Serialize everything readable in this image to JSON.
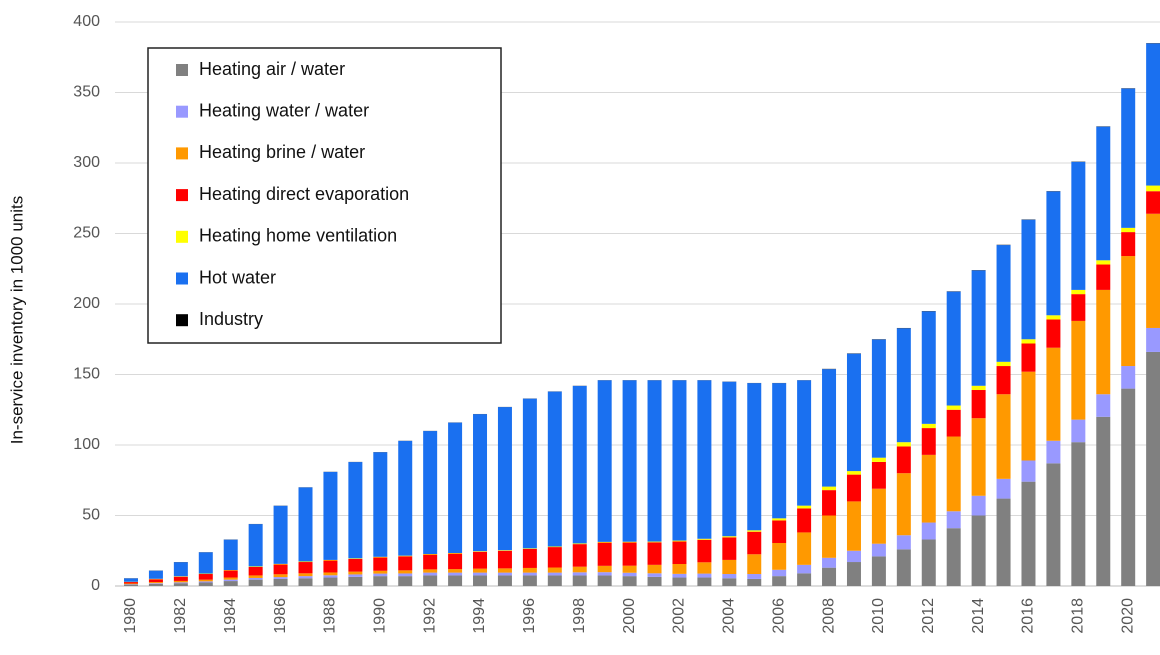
{
  "chart_data": {
    "type": "stacked_bar",
    "y_label": "In-service inventory in 1000 units",
    "categories": [
      "1980",
      null,
      "1982",
      null,
      "1984",
      null,
      "1986",
      null,
      "1988",
      null,
      "1990",
      null,
      "1992",
      null,
      "1994",
      null,
      "1996",
      null,
      "1998",
      null,
      "2000",
      null,
      "2002",
      null,
      "2004",
      null,
      "2006",
      null,
      "2008",
      null,
      "2010",
      null,
      "2012",
      null,
      "2014",
      null,
      "2016",
      null,
      "2018",
      null,
      "2020",
      null
    ],
    "series": [
      {
        "name": "Heating air / water",
        "color": "#808080",
        "values": [
          1,
          1.5,
          2,
          2.5,
          3.5,
          4.5,
          5,
          5.5,
          6,
          6.5,
          7,
          7,
          7.5,
          7.5,
          7.5,
          7.5,
          7.5,
          7.5,
          7.5,
          7.5,
          7,
          6.5,
          6,
          6,
          5.5,
          5,
          7,
          9,
          13,
          17,
          21,
          26,
          33,
          41,
          50,
          62,
          74,
          87,
          102,
          120,
          140,
          166
        ]
      },
      {
        "name": "Heating water / water",
        "color": "#9999ff",
        "values": [
          0.3,
          0.5,
          0.6,
          0.8,
          1,
          1.2,
          1.3,
          1.5,
          1.6,
          1.7,
          1.8,
          1.9,
          2,
          2,
          2,
          2,
          2,
          2,
          2.2,
          2.3,
          2.4,
          2.5,
          2.6,
          2.8,
          3,
          3.5,
          4.5,
          6,
          7,
          8,
          9,
          10,
          12,
          12,
          14,
          14,
          15,
          16,
          16,
          16,
          16,
          17
        ]
      },
      {
        "name": "Heating brine / water",
        "color": "#ff9900",
        "values": [
          0.5,
          0.8,
          1,
          1.2,
          1.5,
          1.8,
          2,
          2,
          2,
          2,
          2,
          2.2,
          2.3,
          2.5,
          2.8,
          3,
          3.3,
          3.6,
          4,
          4.5,
          5,
          6,
          7,
          8,
          10,
          14,
          19,
          23,
          30,
          35,
          39,
          44,
          48,
          53,
          55,
          60,
          63,
          66,
          70,
          74,
          78,
          81
        ]
      },
      {
        "name": "Heating direct evaporation",
        "color": "#ff0000",
        "values": [
          1,
          2,
          3,
          4,
          5,
          6,
          7,
          8,
          8.5,
          9,
          9.5,
          10,
          10.5,
          11,
          12,
          12.5,
          13.5,
          14.5,
          16,
          16.5,
          16.5,
          16,
          16,
          16,
          16,
          16,
          16,
          17,
          18,
          19,
          19,
          19,
          19,
          19,
          20,
          20,
          20,
          20,
          19,
          18,
          17,
          16
        ]
      },
      {
        "name": "Heating home ventilation",
        "color": "#ffff00",
        "values": [
          0.2,
          0.3,
          0.3,
          0.3,
          0.3,
          0.4,
          0.4,
          0.4,
          0.4,
          0.4,
          0.4,
          0.4,
          0.4,
          0.4,
          0.4,
          0.4,
          0.4,
          0.4,
          0.5,
          0.5,
          0.5,
          0.5,
          0.6,
          0.7,
          0.8,
          1,
          1.5,
          2,
          2.5,
          2.5,
          3,
          3,
          3,
          3,
          3,
          3,
          3,
          3,
          3,
          3,
          3,
          4
        ]
      },
      {
        "name": "Hot water",
        "color": "#1a70f0",
        "values": [
          2.4,
          5.8,
          10,
          15.1,
          21.6,
          30,
          41.2,
          52.5,
          62.4,
          68.3,
          74.2,
          81.4,
          87.2,
          92.5,
          97.2,
          101.5,
          106.2,
          109.9,
          111.7,
          114.6,
          114.5,
          114.4,
          113.7,
          112.4,
          109.6,
          104.4,
          95.9,
          88.9,
          83.3,
          83.3,
          83.8,
          80.8,
          79.8,
          80.8,
          81.8,
          82.8,
          84.8,
          87.8,
          90.8,
          94.8,
          98.8,
          100.8
        ]
      },
      {
        "name": "Industry",
        "color": "#000000",
        "values": [
          0.1,
          0.1,
          0.1,
          0.1,
          0.1,
          0.1,
          0.1,
          0.1,
          0.1,
          0.1,
          0.1,
          0.1,
          0.1,
          0.1,
          0.1,
          0.1,
          0.1,
          0.1,
          0.1,
          0.1,
          0.1,
          0.1,
          0.1,
          0.1,
          0.1,
          0.1,
          0.1,
          0.1,
          0.2,
          0.2,
          0.2,
          0.2,
          0.2,
          0.2,
          0.2,
          0.2,
          0.2,
          0.2,
          0.2,
          0.2,
          0.2,
          0.2
        ]
      }
    ],
    "ylim": [
      0,
      400
    ],
    "yticks": [
      0,
      50,
      100,
      150,
      200,
      250,
      300,
      350,
      400
    ],
    "grid": true,
    "legend": "upper left"
  }
}
